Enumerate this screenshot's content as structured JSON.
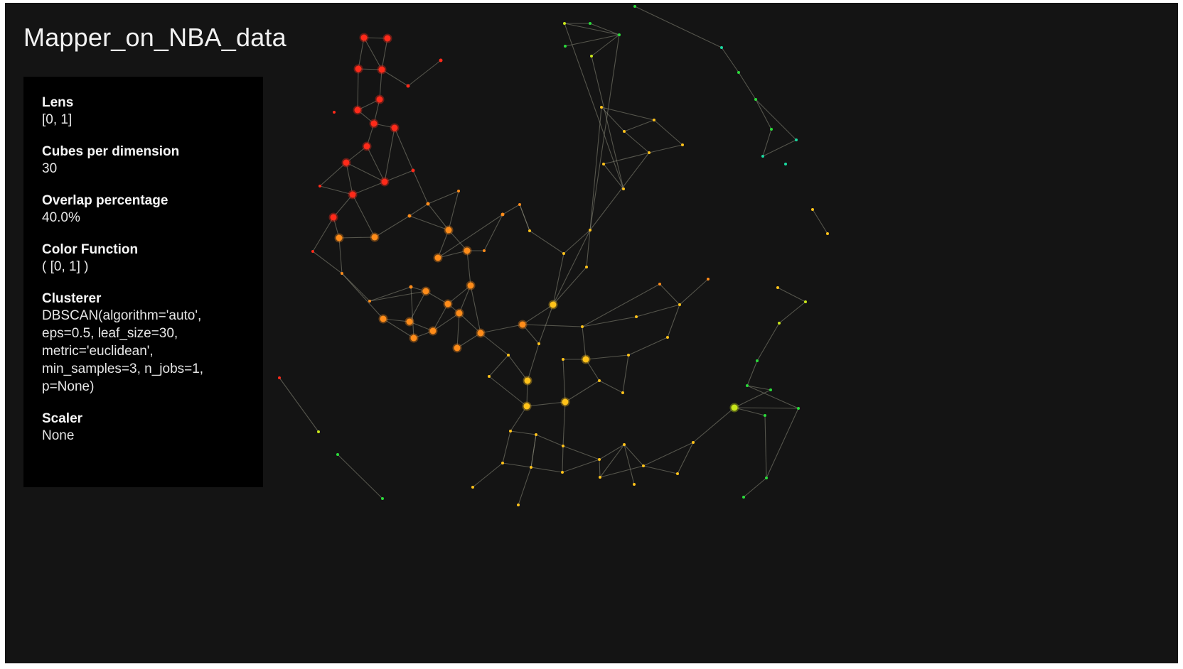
{
  "title": "Mapper_on_NBA_data",
  "info_panel": [
    {
      "label": "Lens",
      "value": "[0, 1]"
    },
    {
      "label": "Cubes per dimension",
      "value": "30"
    },
    {
      "label": "Overlap percentage",
      "value": "40.0%"
    },
    {
      "label": "Color Function",
      "value": "( [0, 1] )"
    },
    {
      "label": "Clusterer",
      "value": "DBSCAN(algorithm='auto',\neps=0.5, leaf_size=30,\nmetric='euclidean',\nmin_samples=3, n_jobs=1,\np=None)"
    },
    {
      "label": "Scaler",
      "value": "None"
    }
  ],
  "colors": {
    "background": "#141414",
    "panel": "#000000",
    "edge": "#8a8a7a",
    "red": "#ff2a1a",
    "orange": "#ff8c1a",
    "yellow": "#ffc21a",
    "lime": "#c8e61a",
    "green": "#2adb3a",
    "teal": "#1ad9a0"
  }
}
